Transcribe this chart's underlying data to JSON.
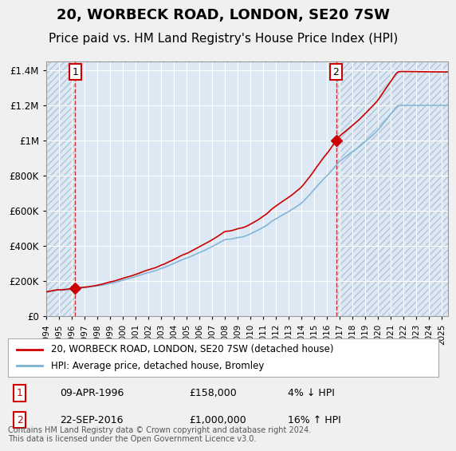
{
  "title": "20, WORBECK ROAD, LONDON, SE20 7SW",
  "subtitle": "Price paid vs. HM Land Registry's House Price Index (HPI)",
  "sale1_date": "09-APR-1996",
  "sale1_price": 158000,
  "sale1_label": "4% ↓ HPI",
  "sale1_year": 1996.27,
  "sale2_date": "22-SEP-2016",
  "sale2_price": 1000000,
  "sale2_label": "16% ↑ HPI",
  "sale2_year": 2016.72,
  "legend_line1": "20, WORBECK ROAD, LONDON, SE20 7SW (detached house)",
  "legend_line2": "HPI: Average price, detached house, Bromley",
  "footer": "Contains HM Land Registry data © Crown copyright and database right 2024.\nThis data is licensed under the Open Government Licence v3.0.",
  "ylim": [
    0,
    1450000
  ],
  "xlim_start": 1994.0,
  "xlim_end": 2025.5,
  "background_color": "#dce9f5",
  "plot_bg_color": "#dce9f5",
  "hatch_color": "#b0c4d8",
  "grid_color": "#ffffff",
  "red_line_color": "#cc0000",
  "blue_line_color": "#7ab0d4",
  "sale_marker_color": "#cc0000",
  "dashed_line_color": "#cc0000",
  "annotation_box_color": "#cc0000",
  "title_fontsize": 13,
  "subtitle_fontsize": 11,
  "tick_years": [
    1994,
    1995,
    1996,
    1997,
    1998,
    1999,
    2000,
    2001,
    2002,
    2003,
    2004,
    2005,
    2006,
    2007,
    2008,
    2009,
    2010,
    2011,
    2012,
    2013,
    2014,
    2015,
    2016,
    2017,
    2018,
    2019,
    2020,
    2021,
    2022,
    2023,
    2024,
    2025
  ]
}
